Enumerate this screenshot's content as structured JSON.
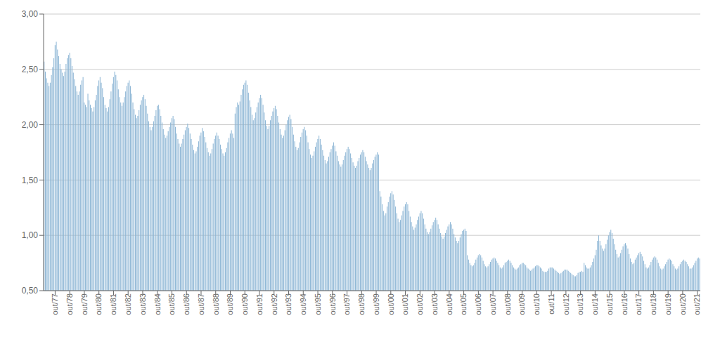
{
  "chart_data": {
    "type": "bar",
    "color": "#8ab4d4",
    "grid": true,
    "ylim": [
      0.5,
      3.0
    ],
    "yticks": [
      {
        "value": 0.5,
        "label": "0,50"
      },
      {
        "value": 1.0,
        "label": "1,00"
      },
      {
        "value": 1.5,
        "label": "1,50"
      },
      {
        "value": 2.0,
        "label": "2,00"
      },
      {
        "value": 2.5,
        "label": "2,50"
      },
      {
        "value": 3.0,
        "label": "3,00"
      }
    ],
    "categories": [
      null,
      null,
      null,
      null,
      null,
      null,
      null,
      null,
      null,
      "out/77",
      null,
      null,
      null,
      null,
      null,
      null,
      null,
      null,
      null,
      null,
      null,
      "out/78",
      null,
      null,
      null,
      null,
      null,
      null,
      null,
      null,
      null,
      null,
      null,
      "out/79",
      null,
      null,
      null,
      null,
      null,
      null,
      null,
      null,
      null,
      null,
      null,
      "out/80",
      null,
      null,
      null,
      null,
      null,
      null,
      null,
      null,
      null,
      null,
      null,
      "out/81",
      null,
      null,
      null,
      null,
      null,
      null,
      null,
      null,
      null,
      null,
      null,
      "out/82",
      null,
      null,
      null,
      null,
      null,
      null,
      null,
      null,
      null,
      null,
      null,
      "out/83",
      null,
      null,
      null,
      null,
      null,
      null,
      null,
      null,
      null,
      null,
      null,
      "out/84",
      null,
      null,
      null,
      null,
      null,
      null,
      null,
      null,
      null,
      null,
      null,
      "out/85",
      null,
      null,
      null,
      null,
      null,
      null,
      null,
      null,
      null,
      null,
      null,
      "out/86",
      null,
      null,
      null,
      null,
      null,
      null,
      null,
      null,
      null,
      null,
      null,
      "out/87",
      null,
      null,
      null,
      null,
      null,
      null,
      null,
      null,
      null,
      null,
      null,
      "out/88",
      null,
      null,
      null,
      null,
      null,
      null,
      null,
      null,
      null,
      null,
      null,
      "out/89",
      null,
      null,
      null,
      null,
      null,
      null,
      null,
      null,
      null,
      null,
      null,
      "out/90",
      null,
      null,
      null,
      null,
      null,
      null,
      null,
      null,
      null,
      null,
      null,
      "out/91",
      null,
      null,
      null,
      null,
      null,
      null,
      null,
      null,
      null,
      null,
      null,
      "out/92",
      null,
      null,
      null,
      null,
      null,
      null,
      null,
      null,
      null,
      null,
      null,
      "out/93",
      null,
      null,
      null,
      null,
      null,
      null,
      null,
      null,
      null,
      null,
      null,
      "out/94",
      null,
      null,
      null,
      null,
      null,
      null,
      null,
      null,
      null,
      null,
      null,
      "out/95",
      null,
      null,
      null,
      null,
      null,
      null,
      null,
      null,
      null,
      null,
      null,
      "out/96",
      null,
      null,
      null,
      null,
      null,
      null,
      null,
      null,
      null,
      null,
      null,
      "out/97",
      null,
      null,
      null,
      null,
      null,
      null,
      null,
      null,
      null,
      null,
      null,
      "out/98",
      null,
      null,
      null,
      null,
      null,
      null,
      null,
      null,
      null,
      null,
      null,
      "out/99",
      null,
      null,
      null,
      null,
      null,
      null,
      null,
      null,
      null,
      null,
      null,
      "out/00",
      null,
      null,
      null,
      null,
      null,
      null,
      null,
      null,
      null,
      null,
      null,
      "out/01",
      null,
      null,
      null,
      null,
      null,
      null,
      null,
      null,
      null,
      null,
      null,
      "out/02",
      null,
      null,
      null,
      null,
      null,
      null,
      null,
      null,
      null,
      null,
      null,
      "out/03",
      null,
      null,
      null,
      null,
      null,
      null,
      null,
      null,
      null,
      null,
      null,
      "out/04",
      null,
      null,
      null,
      null,
      null,
      null,
      null,
      null,
      null,
      null,
      null,
      "out/05",
      null,
      null,
      null,
      null,
      null,
      null,
      null,
      null,
      null,
      null,
      null,
      "out/06",
      null,
      null,
      null,
      null,
      null,
      null,
      null,
      null,
      null,
      null,
      null,
      "out/07",
      null,
      null,
      null,
      null,
      null,
      null,
      null,
      null,
      null,
      null,
      null,
      "out/08",
      null,
      null,
      null,
      null,
      null,
      null,
      null,
      null,
      null,
      null,
      null,
      "out/09",
      null,
      null,
      null,
      null,
      null,
      null,
      null,
      null,
      null,
      null,
      null,
      "out/10",
      null,
      null,
      null,
      null,
      null,
      null,
      null,
      null,
      null,
      null,
      null,
      "out/11",
      null,
      null,
      null,
      null,
      null,
      null,
      null,
      null,
      null,
      null,
      null,
      "out/12",
      null,
      null,
      null,
      null,
      null,
      null,
      null,
      null,
      null,
      null,
      null,
      "out/13",
      null,
      null,
      null,
      null,
      null,
      null,
      null,
      null,
      null,
      null,
      null,
      "out/14",
      null,
      null,
      null,
      null,
      null,
      null,
      null,
      null,
      null,
      null,
      null,
      "out/15",
      null,
      null,
      null,
      null,
      null,
      null,
      null,
      null,
      null,
      null,
      null,
      "out/16",
      null,
      null,
      null,
      null,
      null,
      null,
      null,
      null,
      null,
      null,
      null,
      "out/17",
      null,
      null,
      null,
      null,
      null,
      null,
      null,
      null,
      null,
      null,
      null,
      "out/18",
      null,
      null,
      null,
      null,
      null,
      null,
      null,
      null,
      null,
      null,
      null,
      "out/19",
      null,
      null,
      null,
      null,
      null,
      null,
      null,
      null,
      null,
      null,
      null,
      "out/20",
      null,
      null,
      null,
      null,
      null,
      null,
      null,
      null,
      null,
      null,
      null,
      "out/21",
      null,
      null
    ],
    "values": [
      2.57,
      2.48,
      2.42,
      2.38,
      2.35,
      2.38,
      2.45,
      2.52,
      2.6,
      2.72,
      2.75,
      2.68,
      2.62,
      2.55,
      2.5,
      2.47,
      2.44,
      2.48,
      2.55,
      2.6,
      2.63,
      2.65,
      2.6,
      2.53,
      2.47,
      2.41,
      2.35,
      2.3,
      2.27,
      2.3,
      2.36,
      2.4,
      2.43,
      2.2,
      2.18,
      2.16,
      2.28,
      2.22,
      2.18,
      2.15,
      2.12,
      2.16,
      2.22,
      2.27,
      2.35,
      2.4,
      2.43,
      2.38,
      2.33,
      2.25,
      2.18,
      2.15,
      2.12,
      2.16,
      2.23,
      2.3,
      2.37,
      2.43,
      2.48,
      2.45,
      2.4,
      2.32,
      2.25,
      2.2,
      2.17,
      2.2,
      2.25,
      2.3,
      2.35,
      2.38,
      2.4,
      2.35,
      2.28,
      2.2,
      2.14,
      2.09,
      2.06,
      2.08,
      2.13,
      2.18,
      2.22,
      2.25,
      2.27,
      2.23,
      2.17,
      2.1,
      2.03,
      1.98,
      1.95,
      1.98,
      2.03,
      2.08,
      2.13,
      2.17,
      2.18,
      2.14,
      2.08,
      2.02,
      1.96,
      1.91,
      1.88,
      1.9,
      1.94,
      1.98,
      2.02,
      2.06,
      2.08,
      2.05,
      1.98,
      1.92,
      1.87,
      1.83,
      1.8,
      1.83,
      1.87,
      1.91,
      1.95,
      1.98,
      2.01,
      1.97,
      1.92,
      1.87,
      1.82,
      1.77,
      1.74,
      1.76,
      1.8,
      1.85,
      1.9,
      1.93,
      1.97,
      1.94,
      1.89,
      1.84,
      1.79,
      1.75,
      1.72,
      1.74,
      1.78,
      1.83,
      1.87,
      1.9,
      1.93,
      1.9,
      1.87,
      1.82,
      1.78,
      1.74,
      1.72,
      1.75,
      1.79,
      1.84,
      1.88,
      1.92,
      1.95,
      1.92,
      1.88,
      2.1,
      2.16,
      2.2,
      2.18,
      2.21,
      2.27,
      2.32,
      2.36,
      2.38,
      2.4,
      2.36,
      2.29,
      2.22,
      2.16,
      2.09,
      2.04,
      2.06,
      2.11,
      2.16,
      2.2,
      2.24,
      2.27,
      2.24,
      2.18,
      2.11,
      2.04,
      1.99,
      1.96,
      1.99,
      2.04,
      2.08,
      2.12,
      2.15,
      2.17,
      2.14,
      2.08,
      2.02,
      1.96,
      1.91,
      1.88,
      1.9,
      1.95,
      2.0,
      2.04,
      2.07,
      2.09,
      2.05,
      1.98,
      1.91,
      1.85,
      1.8,
      1.77,
      1.79,
      1.84,
      1.89,
      1.93,
      1.96,
      1.98,
      1.95,
      1.9,
      1.84,
      1.78,
      1.73,
      1.7,
      1.72,
      1.76,
      1.8,
      1.84,
      1.87,
      1.9,
      1.87,
      1.82,
      1.77,
      1.72,
      1.68,
      1.65,
      1.67,
      1.71,
      1.75,
      1.78,
      1.81,
      1.84,
      1.81,
      1.76,
      1.72,
      1.67,
      1.64,
      1.62,
      1.64,
      1.68,
      1.72,
      1.75,
      1.78,
      1.8,
      1.78,
      1.74,
      1.7,
      1.66,
      1.63,
      1.61,
      1.63,
      1.67,
      1.7,
      1.73,
      1.75,
      1.77,
      1.75,
      1.71,
      1.67,
      1.64,
      1.61,
      1.59,
      1.61,
      1.65,
      1.68,
      1.71,
      1.73,
      1.75,
      1.73,
      1.4,
      1.35,
      1.28,
      1.22,
      1.18,
      1.2,
      1.26,
      1.3,
      1.35,
      1.38,
      1.4,
      1.37,
      1.32,
      1.26,
      1.2,
      1.15,
      1.12,
      1.14,
      1.18,
      1.22,
      1.26,
      1.28,
      1.3,
      1.28,
      1.22,
      1.17,
      1.12,
      1.08,
      1.05,
      1.07,
      1.1,
      1.14,
      1.17,
      1.2,
      1.22,
      1.2,
      1.15,
      1.1,
      1.06,
      1.03,
      1.01,
      1.03,
      1.06,
      1.09,
      1.12,
      1.14,
      1.16,
      1.14,
      1.1,
      1.06,
      1.02,
      0.99,
      0.97,
      0.99,
      1.02,
      1.05,
      1.08,
      1.1,
      1.12,
      1.1,
      1.06,
      1.01,
      0.98,
      0.95,
      0.93,
      0.95,
      0.98,
      1.01,
      1.04,
      1.05,
      1.06,
      1.04,
      0.82,
      0.78,
      0.75,
      0.73,
      0.72,
      0.73,
      0.75,
      0.78,
      0.8,
      0.82,
      0.83,
      0.82,
      0.8,
      0.77,
      0.74,
      0.72,
      0.71,
      0.72,
      0.74,
      0.76,
      0.78,
      0.79,
      0.8,
      0.79,
      0.77,
      0.75,
      0.73,
      0.71,
      0.7,
      0.71,
      0.73,
      0.75,
      0.76,
      0.77,
      0.78,
      0.77,
      0.75,
      0.73,
      0.71,
      0.7,
      0.69,
      0.7,
      0.71,
      0.73,
      0.74,
      0.75,
      0.75,
      0.74,
      0.73,
      0.71,
      0.7,
      0.69,
      0.68,
      0.69,
      0.7,
      0.71,
      0.72,
      0.73,
      0.73,
      0.72,
      0.71,
      0.7,
      0.68,
      0.67,
      0.67,
      0.67,
      0.68,
      0.7,
      0.71,
      0.71,
      0.71,
      0.7,
      0.69,
      0.68,
      0.67,
      0.66,
      0.65,
      0.66,
      0.67,
      0.68,
      0.69,
      0.69,
      0.69,
      0.68,
      0.67,
      0.66,
      0.65,
      0.64,
      0.63,
      0.63,
      0.64,
      0.66,
      0.67,
      0.67,
      0.68,
      0.67,
      0.75,
      0.73,
      0.71,
      0.7,
      0.7,
      0.71,
      0.73,
      0.76,
      0.79,
      0.82,
      0.87,
      0.95,
      1.0,
      0.95,
      0.91,
      0.88,
      0.86,
      0.88,
      0.92,
      0.96,
      1.0,
      1.03,
      1.05,
      1.02,
      0.97,
      0.92,
      0.87,
      0.83,
      0.8,
      0.81,
      0.84,
      0.87,
      0.9,
      0.92,
      0.93,
      0.91,
      0.88,
      0.83,
      0.79,
      0.76,
      0.74,
      0.75,
      0.78,
      0.8,
      0.82,
      0.84,
      0.85,
      0.83,
      0.81,
      0.77,
      0.74,
      0.71,
      0.7,
      0.71,
      0.73,
      0.76,
      0.78,
      0.8,
      0.81,
      0.8,
      0.78,
      0.75,
      0.72,
      0.7,
      0.69,
      0.7,
      0.72,
      0.74,
      0.76,
      0.78,
      0.79,
      0.78,
      0.77,
      0.74,
      0.72,
      0.7,
      0.69,
      0.7,
      0.72,
      0.74,
      0.76,
      0.77,
      0.78,
      0.77,
      0.76,
      0.74,
      0.72,
      0.7,
      0.7,
      0.71,
      0.73,
      0.75,
      0.77,
      0.79,
      0.8,
      0.79
    ]
  }
}
